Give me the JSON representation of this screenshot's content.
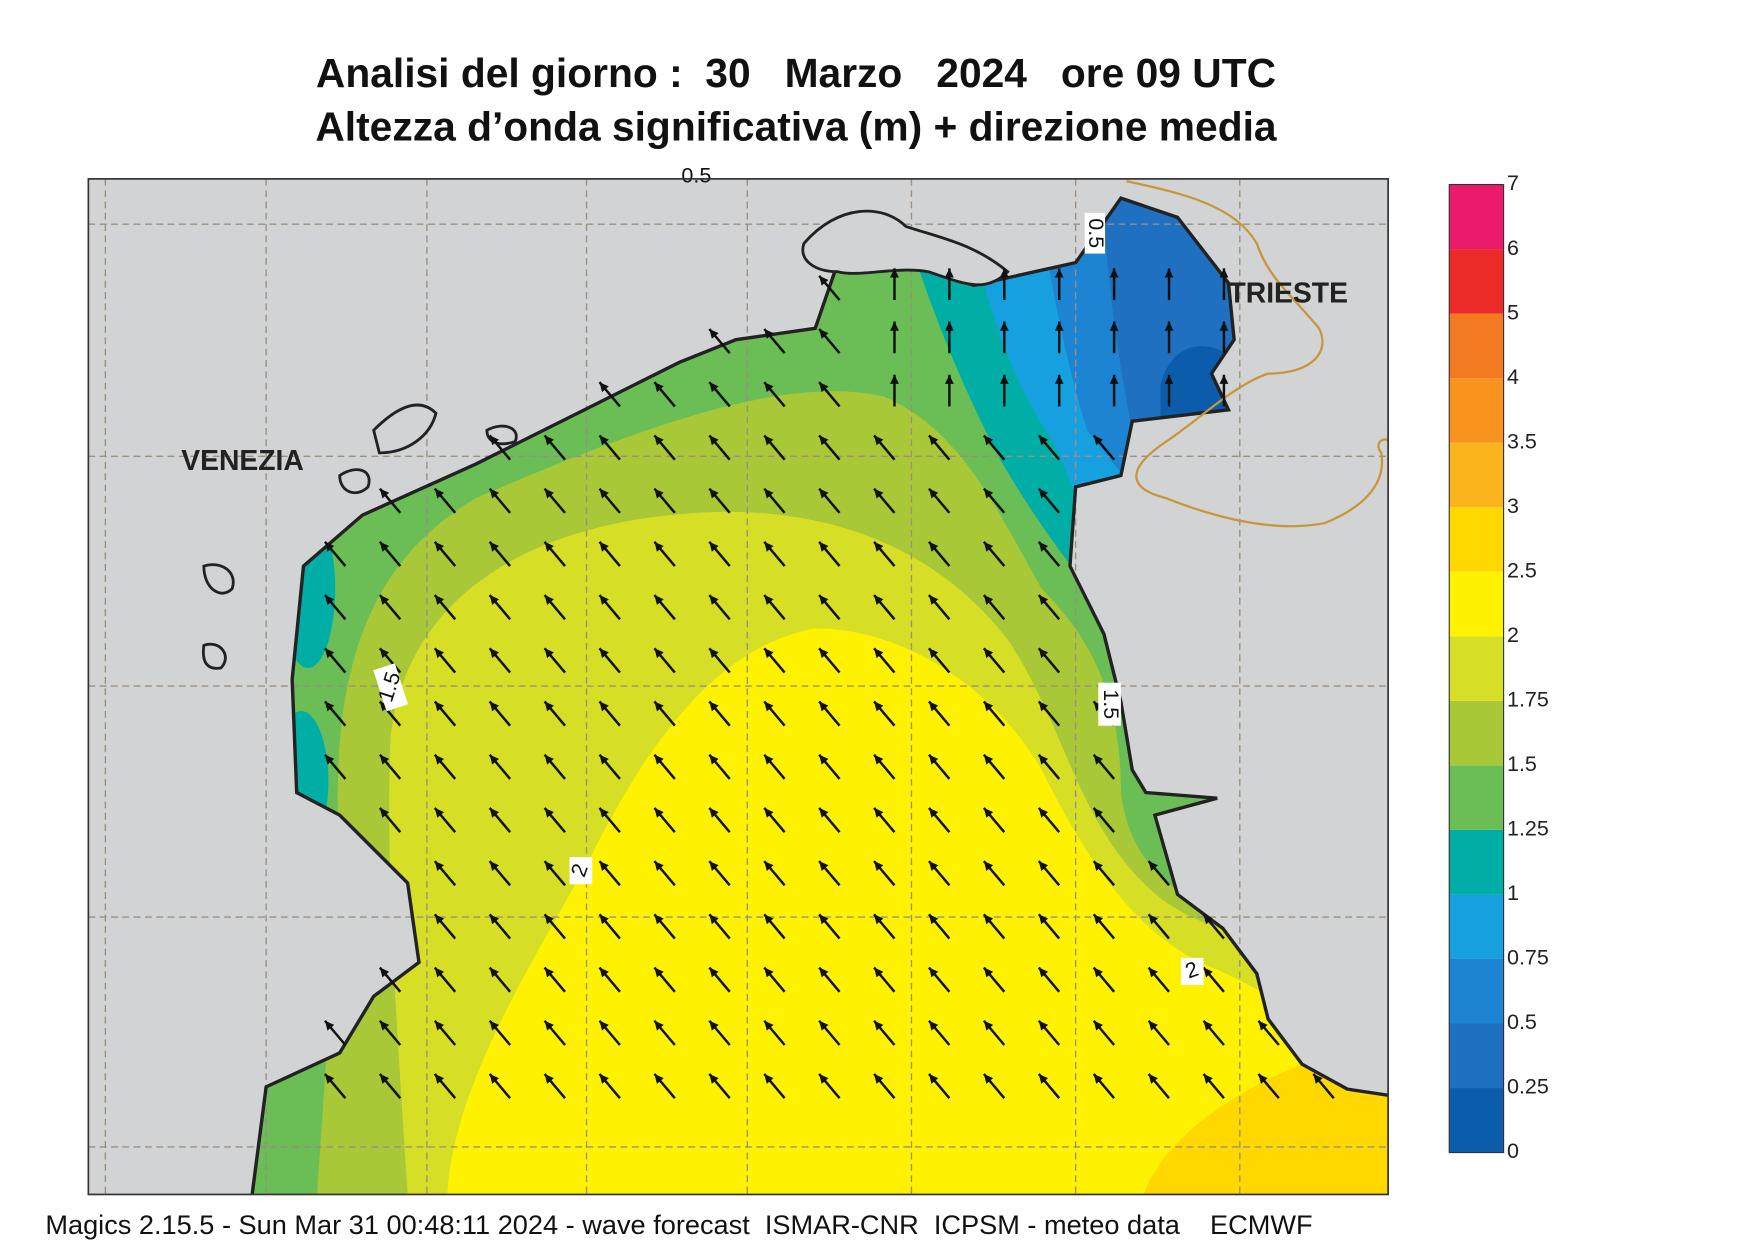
{
  "header": {
    "title": "Analisi del giorno :  30   Marzo   2024   ore 09 UTC",
    "subtitle": "Altezza d’onda significativa (m) + direzione media"
  },
  "map": {
    "places": [
      "VENEZIA",
      "TRIESTE"
    ],
    "contour_labels": [
      "0.5",
      "0.5",
      "1.5",
      "1.5",
      "2",
      "2"
    ]
  },
  "legend": {
    "levels": [
      0,
      0.25,
      0.5,
      0.75,
      1,
      1.25,
      1.5,
      1.75,
      2,
      2.5,
      3,
      3.5,
      4,
      5,
      6,
      7
    ],
    "colors": [
      "#0b5dab",
      "#1f70c0",
      "#1c84d2",
      "#17a0e0",
      "#00aea6",
      "#6bbd55",
      "#a8c838",
      "#d6df26",
      "#fff200",
      "#ffd800",
      "#fbb41c",
      "#f7931e",
      "#f47a21",
      "#ec2a27",
      "#ec1a6c"
    ]
  },
  "footer": "Magics 2.15.5 - Sun Mar 31 00:48:11 2024 - wave forecast  ISMAR-CNR  ICPSM - meteo data    ECMWF"
}
